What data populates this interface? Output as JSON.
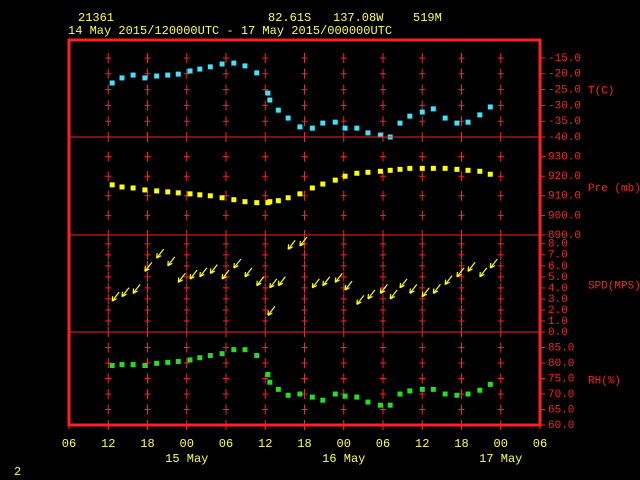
{
  "header": {
    "station": "21361",
    "latitude": "82.61S",
    "longitude": "137.08W",
    "elevation": "519M",
    "period": "14 May 2015/120000UTC - 17 May 2015/000000UTC"
  },
  "page_number": "2",
  "chart_data": [
    {
      "type": "scatter",
      "label": "T(C)",
      "color": "#40e0ff",
      "x": [
        12.6,
        14.1,
        15.8,
        17.6,
        19.4,
        21.1,
        22.7,
        24.5,
        26,
        27.6,
        29.4,
        31.2,
        32.9,
        34.7,
        36.4,
        36.7,
        38,
        39.5,
        41.3,
        43.2,
        44.8,
        46.7,
        48.2,
        50,
        51.7,
        53.6,
        55.1,
        56.6,
        58.1,
        60,
        61.7,
        63.5,
        65.3,
        67,
        68.8,
        70.4
      ],
      "values": [
        -22.9,
        -21.3,
        -20.4,
        -21.3,
        -20.7,
        -20.4,
        -20.1,
        -19.1,
        -18.5,
        -17.8,
        -16.9,
        -16.6,
        -17.5,
        -19.7,
        -26.1,
        -28.3,
        -31.5,
        -34,
        -36.8,
        -37.2,
        -35.6,
        -35.3,
        -37.2,
        -37.2,
        -38.7,
        -39.4,
        -40,
        -35.6,
        -33.4,
        -32.1,
        -31.1,
        -34,
        -35.6,
        -35.3,
        -33,
        -30.5
      ],
      "ylim": [
        -40,
        -9.3
      ],
      "yticks": [
        {
          "value": -15,
          "label": "-15.0"
        },
        {
          "value": -20,
          "label": "-20.0"
        },
        {
          "value": -25,
          "label": "-25.0"
        },
        {
          "value": -30,
          "label": "-30.0"
        },
        {
          "value": -35,
          "label": "-35.0"
        },
        {
          "value": -40,
          "label": "-40.0"
        }
      ]
    },
    {
      "type": "scatter",
      "label": "Pre (mb)",
      "color": "#ffff00",
      "x": [
        12.6,
        14.1,
        15.8,
        17.6,
        19.4,
        21.1,
        22.7,
        24.5,
        26,
        27.6,
        29.4,
        31.2,
        32.9,
        34.7,
        36.4,
        36.7,
        38,
        39.5,
        41.3,
        43.2,
        44.8,
        46.7,
        48.2,
        50,
        51.7,
        53.6,
        55.1,
        56.6,
        58.1,
        60,
        61.7,
        63.5,
        65.3,
        67,
        68.8,
        70.4
      ],
      "values": [
        915.6,
        914.5,
        914,
        913,
        912.5,
        912,
        911.5,
        911,
        910.5,
        910,
        909,
        908,
        907,
        906.5,
        906.5,
        907,
        907.5,
        909,
        911,
        914,
        916,
        918,
        920,
        921.5,
        922,
        922.5,
        923,
        923.5,
        924,
        924,
        924,
        924,
        923.5,
        923,
        922.5,
        921
      ],
      "ylim": [
        890,
        940
      ],
      "yticks": [
        {
          "value": 930,
          "label": "930.0"
        },
        {
          "value": 920,
          "label": "920.0"
        },
        {
          "value": 910,
          "label": "910.0"
        },
        {
          "value": 900,
          "label": "900.0"
        },
        {
          "value": 890,
          "label": "890.0"
        }
      ]
    },
    {
      "type": "wind",
      "label": "SPD(MPS)",
      "color": "#ffff00",
      "x": [
        12.6,
        14.1,
        15.8,
        17.6,
        19.4,
        21.1,
        22.7,
        24.5,
        26,
        27.6,
        29.4,
        31.2,
        32.9,
        34.7,
        36.4,
        36.7,
        38,
        39.5,
        41.3,
        43.2,
        44.8,
        46.7,
        48.2,
        50,
        51.7,
        53.6,
        55.1,
        56.6,
        58.1,
        60,
        61.7,
        63.5,
        65.3,
        67,
        68.8,
        70.4
      ],
      "values": [
        2.8,
        3.2,
        3.5,
        5.5,
        6.7,
        6,
        4.5,
        4.8,
        5,
        5.3,
        4.8,
        5.8,
        5,
        4.2,
        1.5,
        4,
        4.2,
        7.5,
        7.8,
        4,
        4.2,
        4.5,
        3.8,
        2.5,
        3,
        3.5,
        3,
        4,
        3.5,
        3.2,
        3.5,
        4.3,
        5,
        5.5,
        5,
        5.8
      ],
      "ylim": [
        0,
        8.8
      ],
      "yticks": [
        {
          "value": 8,
          "label": "8.0"
        },
        {
          "value": 7,
          "label": "7.0"
        },
        {
          "value": 6,
          "label": "6.0"
        },
        {
          "value": 5,
          "label": "5.0"
        },
        {
          "value": 4,
          "label": "4.0"
        },
        {
          "value": 3,
          "label": "3.0"
        },
        {
          "value": 2,
          "label": "2.0"
        },
        {
          "value": 1,
          "label": "1.0"
        },
        {
          "value": 0,
          "label": "0.0"
        }
      ]
    },
    {
      "type": "scatter",
      "label": "RH(%)",
      "color": "#20e020",
      "x": [
        12.6,
        14.1,
        15.8,
        17.6,
        19.4,
        21.1,
        22.7,
        24.5,
        26,
        27.6,
        29.4,
        31.2,
        32.9,
        34.7,
        36.4,
        36.7,
        38,
        39.5,
        41.3,
        43.2,
        44.8,
        46.7,
        48.2,
        50,
        51.7,
        53.6,
        55.1,
        56.6,
        58.1,
        60,
        61.7,
        63.5,
        65.3,
        67,
        68.8,
        70.4
      ],
      "values": [
        79.2,
        79.5,
        79.5,
        79.2,
        79.9,
        80.2,
        80.5,
        81,
        81.7,
        82.4,
        83,
        84.3,
        84.3,
        82.4,
        76.3,
        73.8,
        71.5,
        69.6,
        70,
        69,
        68,
        70,
        69.3,
        69,
        67.4,
        66.4,
        66.4,
        70,
        71,
        71.5,
        71.5,
        70,
        69.6,
        70,
        71.2,
        73.1
      ],
      "ylim": [
        60,
        90
      ],
      "yticks": [
        {
          "value": 85,
          "label": "85.0"
        },
        {
          "value": 80,
          "label": "80.0"
        },
        {
          "value": 75,
          "label": "75.0"
        },
        {
          "value": 70,
          "label": "70.0"
        },
        {
          "value": 65,
          "label": "65.0"
        },
        {
          "value": 60,
          "label": "60.0"
        }
      ],
      "xlim": [
        6,
        78
      ],
      "xticks": [
        {
          "value": 6,
          "label": "06"
        },
        {
          "value": 12,
          "label": "12"
        },
        {
          "value": 18,
          "label": "18"
        },
        {
          "value": 24,
          "label": "00"
        },
        {
          "value": 30,
          "label": "06"
        },
        {
          "value": 36,
          "label": "12"
        },
        {
          "value": 42,
          "label": "18"
        },
        {
          "value": 48,
          "label": "00"
        },
        {
          "value": 54,
          "label": "06"
        },
        {
          "value": 60,
          "label": "12"
        },
        {
          "value": 66,
          "label": "18"
        },
        {
          "value": 72,
          "label": "00"
        },
        {
          "value": 78,
          "label": "06"
        }
      ],
      "date_labels": [
        {
          "value": 24,
          "label": "15 May"
        },
        {
          "value": 48,
          "label": "16 May"
        },
        {
          "value": 72,
          "label": "17 May"
        }
      ]
    }
  ]
}
